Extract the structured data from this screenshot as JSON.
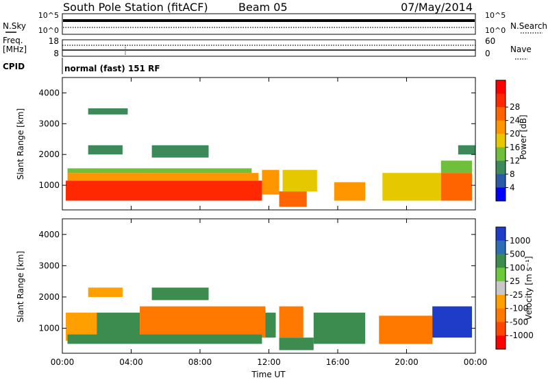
{
  "header": {
    "title": "South Pole Station (fitACF)",
    "beam": "Beam 05",
    "date": "07/May/2014"
  },
  "noise_panel": {
    "left_label": "N.Sky",
    "right_label": "N.Search",
    "left_ticks": [
      "10^5",
      "10^0"
    ],
    "right_ticks": [
      "10^5",
      "10^0"
    ]
  },
  "freq_panel": {
    "left_label_line1": "Freq.",
    "left_label_line2": "[MHz]",
    "right_label": "Nave",
    "left_ticks": [
      "18",
      "8"
    ],
    "right_ticks": [
      "60",
      "0"
    ]
  },
  "cpid_panel": {
    "label": "CPID",
    "value": "normal (fast) 151 RF"
  },
  "colors": {
    "power": [
      "#0000ff",
      "#2b5aa6",
      "#3c8a5a",
      "#6fbf3c",
      "#e6c800",
      "#ff9600",
      "#ff6400",
      "#ff2800",
      "#ff0000"
    ],
    "velocity": [
      "#1e3cc8",
      "#2d6eb4",
      "#3c8c50",
      "#6ec83c",
      "#c8c8c8",
      "#ffa000",
      "#ff7800",
      "#ff4600",
      "#ff0000"
    ]
  },
  "chart_data": [
    {
      "type": "heatmap",
      "quantity": "Power",
      "ylabel": "Slant Range [km]",
      "xlabel": "",
      "x_ticks": [
        "00:00",
        "04:00",
        "08:00",
        "12:00",
        "16:00",
        "20:00",
        "00:00"
      ],
      "y_ticks": [
        "1000",
        "2000",
        "3000",
        "4000"
      ],
      "ylim": [
        200,
        4500
      ],
      "xlim_hours": [
        0,
        24
      ],
      "colorbar": {
        "label": "Power [dB]",
        "ticks": [
          "4",
          "8",
          "12",
          "16",
          "20",
          "24",
          "28"
        ]
      },
      "regions": [
        {
          "t0": 0.2,
          "t1": 11.6,
          "r0": 500,
          "r1": 1150,
          "value": 28
        },
        {
          "t0": 0.3,
          "t1": 11.4,
          "r0": 1150,
          "r1": 1400,
          "value": 20
        },
        {
          "t0": 0.3,
          "t1": 11.0,
          "r0": 1400,
          "r1": 1550,
          "value": 12
        },
        {
          "t0": 11.6,
          "t1": 12.6,
          "r0": 700,
          "r1": 1500,
          "value": 20
        },
        {
          "t0": 12.6,
          "t1": 14.2,
          "r0": 300,
          "r1": 800,
          "value": 24
        },
        {
          "t0": 12.8,
          "t1": 14.8,
          "r0": 800,
          "r1": 1500,
          "value": 16
        },
        {
          "t0": 15.8,
          "t1": 17.6,
          "r0": 500,
          "r1": 1100,
          "value": 20
        },
        {
          "t0": 18.6,
          "t1": 22.0,
          "r0": 500,
          "r1": 1400,
          "value": 16
        },
        {
          "t0": 22.0,
          "t1": 23.8,
          "r0": 500,
          "r1": 1400,
          "value": 24
        },
        {
          "t0": 22.0,
          "t1": 23.8,
          "r0": 1400,
          "r1": 1800,
          "value": 12
        },
        {
          "t0": 1.5,
          "t1": 3.5,
          "r0": 2000,
          "r1": 2300,
          "value": 8
        },
        {
          "t0": 1.5,
          "t1": 3.8,
          "r0": 3300,
          "r1": 3500,
          "value": 8
        },
        {
          "t0": 5.2,
          "t1": 8.5,
          "r0": 1900,
          "r1": 2300,
          "value": 8
        },
        {
          "t0": 23.0,
          "t1": 24.0,
          "r0": 2000,
          "r1": 2300,
          "value": 8
        }
      ]
    },
    {
      "type": "heatmap",
      "quantity": "Velocity",
      "ylabel": "Slant Range [km]",
      "xlabel": "Time UT",
      "x_ticks": [
        "00:00",
        "04:00",
        "08:00",
        "12:00",
        "16:00",
        "20:00",
        "00:00"
      ],
      "y_ticks": [
        "1000",
        "2000",
        "3000",
        "4000"
      ],
      "ylim": [
        200,
        4500
      ],
      "xlim_hours": [
        0,
        24
      ],
      "colorbar": {
        "label": "Velocity [m s⁻¹]",
        "ticks": [
          "1000",
          "500",
          "100",
          "25",
          "-25",
          "-100",
          "-500",
          "-1000"
        ]
      },
      "regions": [
        {
          "t0": 0.2,
          "t1": 2.0,
          "r0": 600,
          "r1": 1500,
          "value": -100
        },
        {
          "t0": 2.0,
          "t1": 4.5,
          "r0": 700,
          "r1": 1500,
          "value": 100
        },
        {
          "t0": 4.5,
          "t1": 11.8,
          "r0": 700,
          "r1": 1700,
          "value": -500
        },
        {
          "t0": 0.3,
          "t1": 11.6,
          "r0": 500,
          "r1": 800,
          "value": 100
        },
        {
          "t0": 11.8,
          "t1": 12.4,
          "r0": 700,
          "r1": 1500,
          "value": 100
        },
        {
          "t0": 12.6,
          "t1": 14.0,
          "r0": 700,
          "r1": 1700,
          "value": -500
        },
        {
          "t0": 12.6,
          "t1": 14.6,
          "r0": 300,
          "r1": 700,
          "value": 100
        },
        {
          "t0": 14.6,
          "t1": 17.6,
          "r0": 500,
          "r1": 1500,
          "value": 100
        },
        {
          "t0": 18.4,
          "t1": 21.5,
          "r0": 500,
          "r1": 1400,
          "value": -500
        },
        {
          "t0": 21.5,
          "t1": 23.8,
          "r0": 700,
          "r1": 1700,
          "value": 1000
        },
        {
          "t0": 1.5,
          "t1": 3.5,
          "r0": 2000,
          "r1": 2300,
          "value": -100
        },
        {
          "t0": 5.2,
          "t1": 8.5,
          "r0": 1900,
          "r1": 2300,
          "value": 100
        }
      ]
    }
  ]
}
